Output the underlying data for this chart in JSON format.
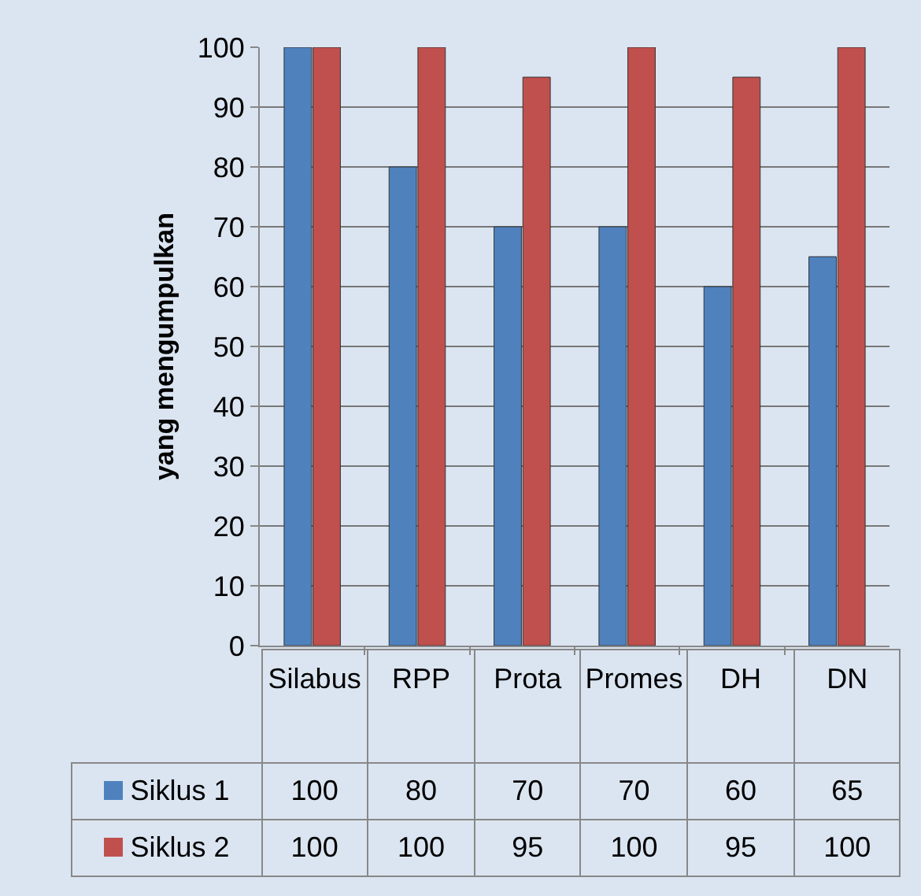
{
  "chart_data": {
    "type": "bar",
    "ylabel": "yang mengumpulkan",
    "categories": [
      "Silabus",
      "RPP",
      "Prota",
      "Promes",
      "DH",
      "DN"
    ],
    "series": [
      {
        "name": "Siklus 1",
        "color": "#4f81bd",
        "values": [
          100,
          80,
          70,
          70,
          60,
          65
        ]
      },
      {
        "name": "Siklus 2",
        "color": "#c0504d",
        "values": [
          100,
          100,
          95,
          100,
          95,
          100
        ]
      }
    ],
    "ylim": [
      0,
      100
    ],
    "yticks": [
      0,
      10,
      20,
      30,
      40,
      50,
      60,
      70,
      80,
      90,
      100
    ],
    "grid": "y",
    "legend": "bottom",
    "data_labels": true
  }
}
